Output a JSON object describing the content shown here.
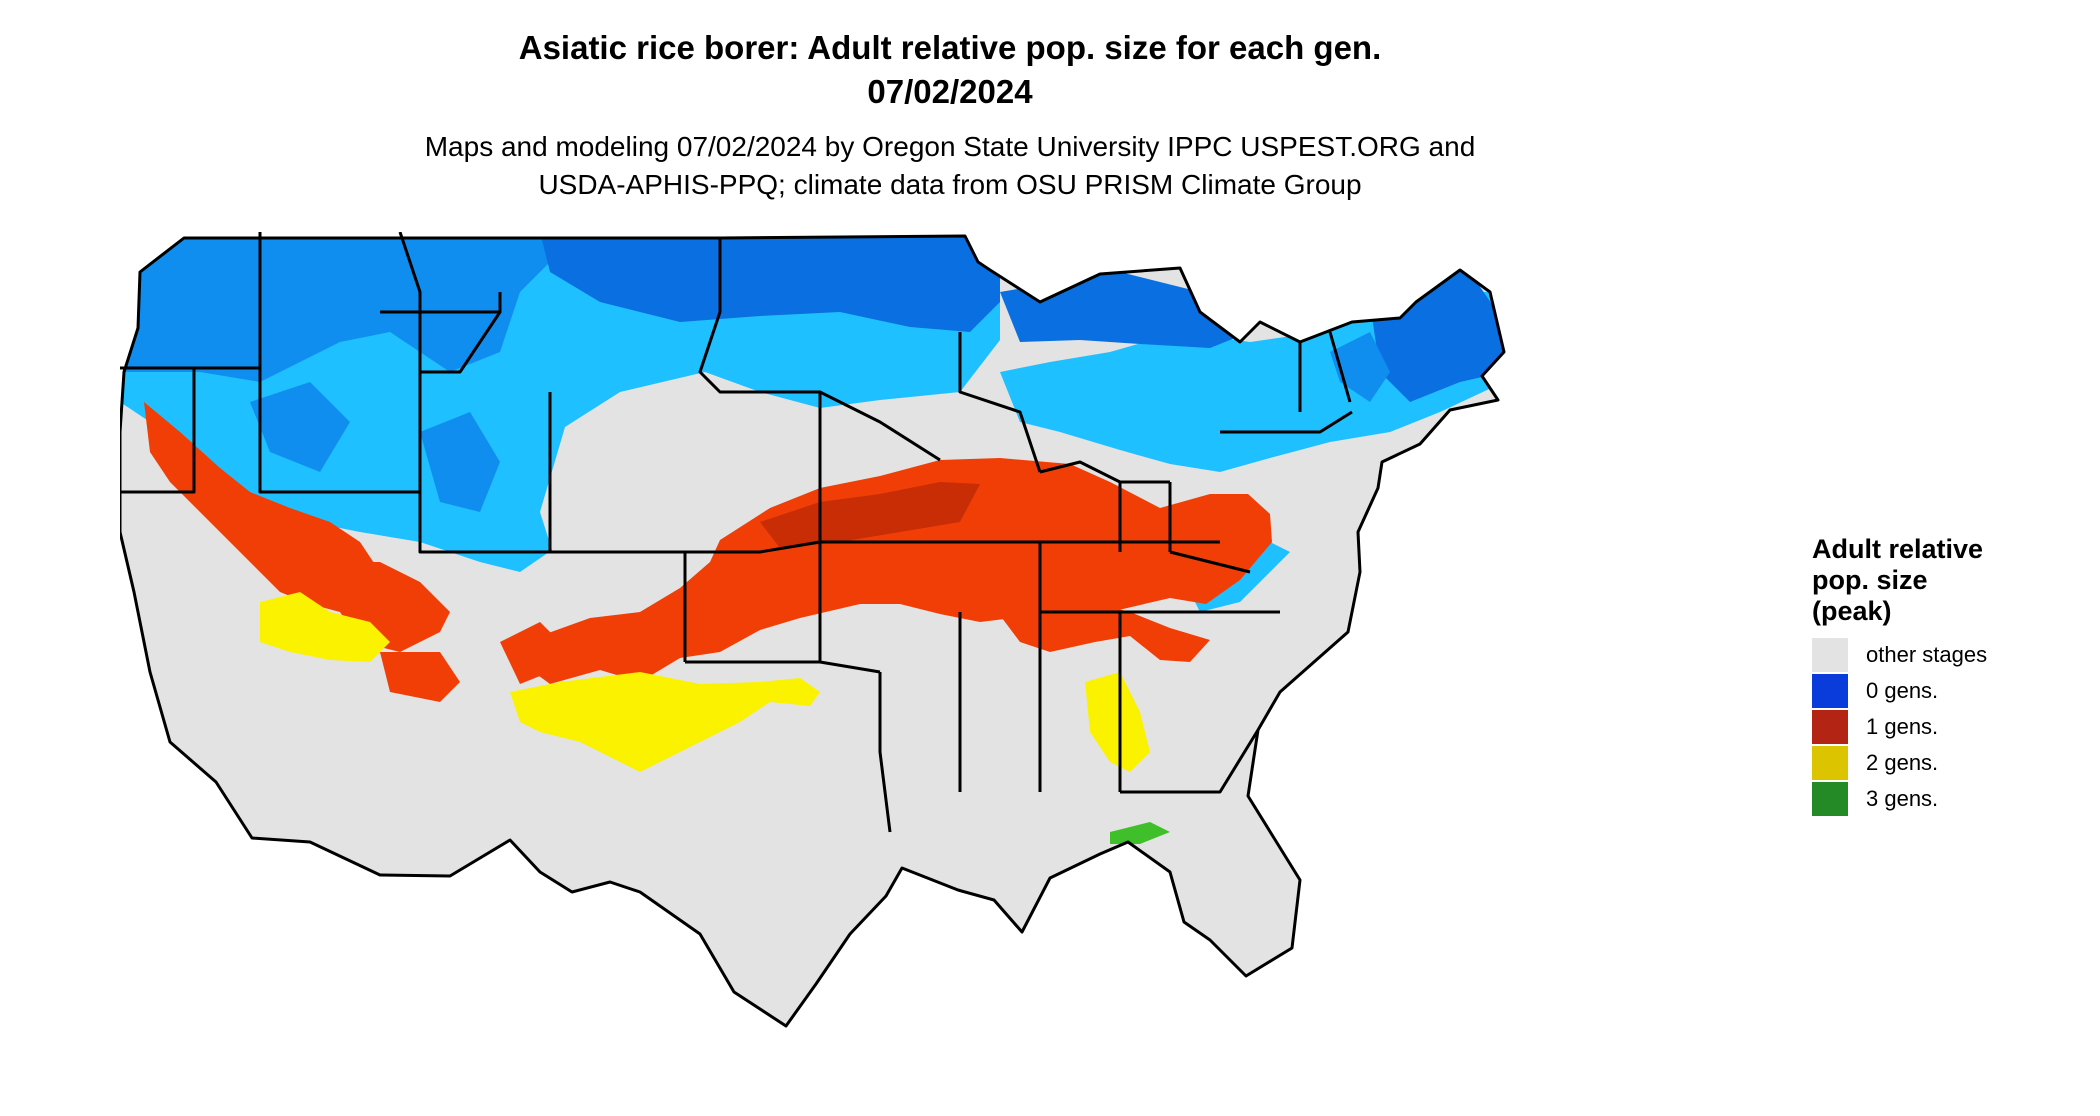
{
  "title_line1": "Asiatic rice borer: Adult relative pop. size for each gen.",
  "title_line2": "07/02/2024",
  "subtitle_line1": "Maps and modeling 07/02/2024 by Oregon State University IPPC USPEST.ORG and",
  "subtitle_line2": "USDA-APHIS-PPQ; climate data from OSU PRISM Climate Group",
  "legend": {
    "title_lines": [
      "Adult relative",
      "pop. size",
      "(peak)"
    ],
    "items": [
      {
        "label": "other stages",
        "color": "#e3e3e3"
      },
      {
        "label": "0 gens.",
        "color": "#0a3bdb"
      },
      {
        "label": "1 gens.",
        "color": "#b32414"
      },
      {
        "label": "2 gens.",
        "color": "#dcc400"
      },
      {
        "label": "3 gens.",
        "color": "#238a26"
      }
    ]
  },
  "map_colors": {
    "other": "#e3e3e3",
    "gen0_light": "#1ec0ff",
    "gen0_mid": "#0f8ef0",
    "gen0_dark": "#0a6fe0",
    "gen1": "#f03e06",
    "gen1_dark": "#c82d05",
    "gen2": "#fbf200",
    "gen3": "#3fbf2a",
    "border": "#000000"
  }
}
